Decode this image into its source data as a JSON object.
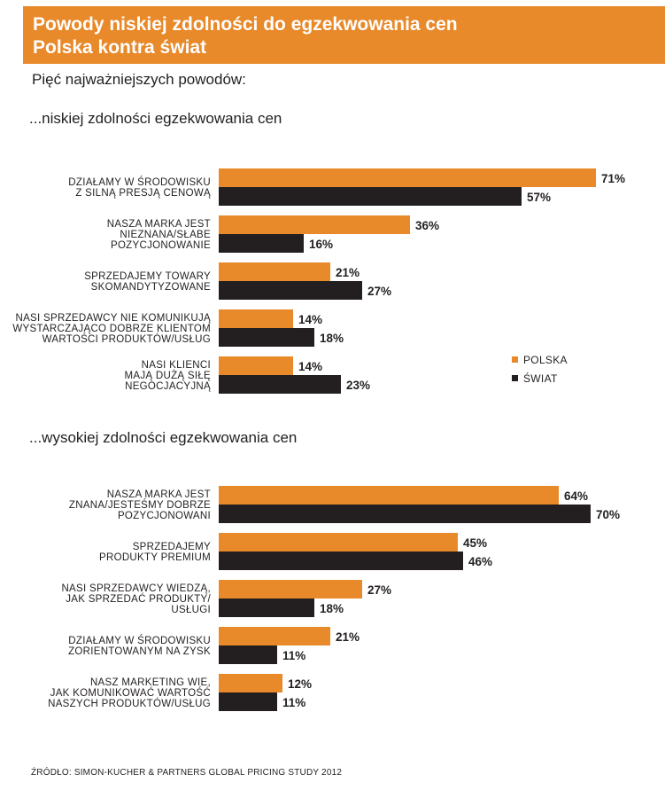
{
  "header": {
    "title_line1": "Powody niskiej zdolności do egzekwowania cen",
    "title_line2": "Polska kontra świat"
  },
  "subtitle": "Pięć najważniejszych powodów:",
  "footer": "ŹRÓDŁO: SIMON-KUCHER & PARTNERS GLOBAL PRICING STUDY 2012",
  "colors": {
    "polska": "#e8892a",
    "swiat": "#231f20",
    "header_bg": "#e8892a"
  },
  "chart_data": [
    {
      "type": "bar",
      "orientation": "horizontal",
      "title": "...niskiej zdolności egzekwowania cen",
      "series_names": [
        "POLSKA",
        "ŚWIAT"
      ],
      "legend": {
        "position": "right",
        "entries": [
          "POLSKA",
          "ŚWIAT"
        ]
      },
      "xlim": [
        0,
        100
      ],
      "categories": [
        [
          "DZIAŁAMY W ŚRODOWISKU",
          "Z SILNĄ PRESJĄ CENOWĄ"
        ],
        [
          "NASZA MARKA JEST",
          "NIEZNANA/SŁABE",
          "POZYCJONOWANIE"
        ],
        [
          "SPRZEDAJEMY TOWARY",
          "SKOMANDYTYZOWANE"
        ],
        [
          "NASI SPRZEDAWCY NIE KOMUNIKUJĄ",
          "WYSTARCZAJĄCO DOBRZE KLIENTOM",
          "WARTOŚCI PRODUKTÓW/USŁUG"
        ],
        [
          "NASI KLIENCI",
          "MAJĄ DUŻĄ SIŁĘ",
          "NEGOCJACYJNĄ"
        ]
      ],
      "series": [
        {
          "name": "POLSKA",
          "values": [
            71,
            36,
            21,
            14,
            14
          ],
          "labels": [
            "71%",
            "36%",
            "21%",
            "14%",
            "14%"
          ]
        },
        {
          "name": "ŚWIAT",
          "values": [
            57,
            16,
            27,
            18,
            23
          ],
          "labels": [
            "57%",
            "16%",
            "27%",
            "18%",
            "23%"
          ]
        }
      ]
    },
    {
      "type": "bar",
      "orientation": "horizontal",
      "title": "...wysokiej zdolności egzekwowania cen",
      "series_names": [
        "POLSKA",
        "ŚWIAT"
      ],
      "xlim": [
        0,
        100
      ],
      "categories": [
        [
          "NASZA MARKA JEST",
          "ZNANA/JESTEŚMY DOBRZE",
          "POZYCJONOWANI"
        ],
        [
          "SPRZEDAJEMY",
          "PRODUKTY PREMIUM"
        ],
        [
          "NASI SPRZEDAWCY WIEDZĄ,",
          "JAK SPRZEDAĆ PRODUKTY/",
          "USŁUGI"
        ],
        [
          "DZIAŁAMY W ŚRODOWISKU",
          "ZORIENTOWANYM NA ZYSK"
        ],
        [
          "NASZ MARKETING WIE,",
          "JAK KOMUNIKOWAĆ WARTOŚĆ",
          "NASZYCH PRODUKTÓW/USŁUG"
        ]
      ],
      "series": [
        {
          "name": "POLSKA",
          "values": [
            64,
            45,
            27,
            21,
            12
          ],
          "labels": [
            "64%",
            "45%",
            "27%",
            "21%",
            "12%"
          ]
        },
        {
          "name": "ŚWIAT",
          "values": [
            70,
            46,
            18,
            11,
            11
          ],
          "labels": [
            "70%",
            "46%",
            "18%",
            "11%",
            "11%"
          ]
        }
      ]
    }
  ]
}
